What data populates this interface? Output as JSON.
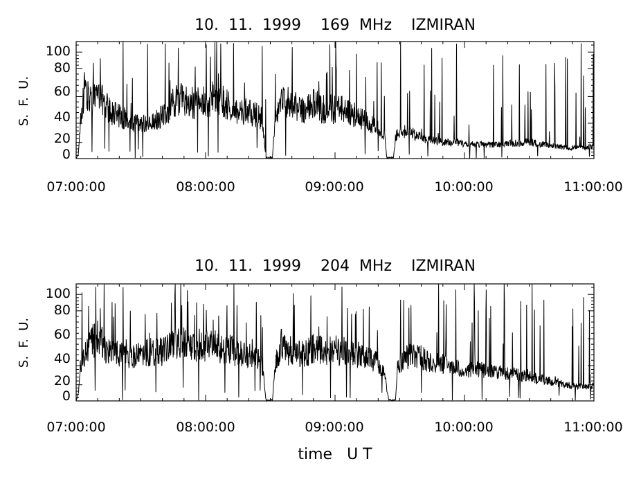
{
  "xlabel": "time   U T",
  "chart_data": [
    {
      "type": "line",
      "title": "10.  11.  1999    169  MHz    IZMIRAN",
      "ylabel": "S.  F.  U.",
      "xlabel": "",
      "x_ticks": [
        "07:00:00",
        "08:00:00",
        "09:00:00",
        "10:00:00",
        "11:00:00"
      ],
      "y_ticks": [
        0,
        20,
        40,
        60,
        80,
        100
      ],
      "xlim": [
        "07:00:00",
        "11:00:00"
      ],
      "ylim": [
        0,
        106
      ],
      "grid": false,
      "series": [
        {
          "color": "#000000",
          "points": [
            [
              "07:00:00",
              0
            ],
            [
              "07:01:00",
              5
            ],
            [
              "07:02:00",
              40
            ],
            [
              "07:04:00",
              70
            ],
            [
              "07:06:00",
              55
            ],
            [
              "07:10:00",
              65
            ],
            [
              "07:15:00",
              50
            ],
            [
              "07:20:00",
              45
            ],
            [
              "07:25:00",
              40
            ],
            [
              "07:30:00",
              38
            ],
            [
              "07:35:00",
              40
            ],
            [
              "07:40:00",
              45
            ],
            [
              "07:45:00",
              55
            ],
            [
              "07:50:00",
              58
            ],
            [
              "07:55:00",
              55
            ],
            [
              "08:00:00",
              55
            ],
            [
              "08:05:00",
              57
            ],
            [
              "08:10:00",
              55
            ],
            [
              "08:15:00",
              50
            ],
            [
              "08:20:00",
              48
            ],
            [
              "08:25:00",
              45
            ],
            [
              "08:27:00",
              30
            ],
            [
              "08:28:00",
              0
            ],
            [
              "08:31:00",
              0
            ],
            [
              "08:32:00",
              40
            ],
            [
              "08:35:00",
              55
            ],
            [
              "08:40:00",
              55
            ],
            [
              "08:45:00",
              50
            ],
            [
              "08:50:00",
              55
            ],
            [
              "08:55:00",
              50
            ],
            [
              "09:00:00",
              50
            ],
            [
              "09:05:00",
              50
            ],
            [
              "09:10:00",
              45
            ],
            [
              "09:15:00",
              40
            ],
            [
              "09:20:00",
              35
            ],
            [
              "09:23:00",
              28
            ],
            [
              "09:24:00",
              0
            ],
            [
              "09:27:00",
              0
            ],
            [
              "09:28:00",
              25
            ],
            [
              "09:30:00",
              32
            ],
            [
              "09:35:00",
              30
            ],
            [
              "09:40:00",
              25
            ],
            [
              "09:45:00",
              22
            ],
            [
              "09:50:00",
              20
            ],
            [
              "09:55:00",
              20
            ],
            [
              "10:00:00",
              18
            ],
            [
              "10:10:00",
              17
            ],
            [
              "10:20:00",
              18
            ],
            [
              "10:30:00",
              20
            ],
            [
              "10:40:00",
              16
            ],
            [
              "10:50:00",
              13
            ],
            [
              "10:55:00",
              14
            ],
            [
              "11:00:00",
              15
            ]
          ]
        }
      ]
    },
    {
      "type": "line",
      "title": "10.  11.  1999    204  MHz    IZMIRAN",
      "ylabel": "S.  F.  U.",
      "xlabel": "time   U T",
      "x_ticks": [
        "07:00:00",
        "08:00:00",
        "09:00:00",
        "10:00:00",
        "11:00:00"
      ],
      "y_ticks": [
        0,
        20,
        40,
        60,
        80,
        100
      ],
      "xlim": [
        "07:00:00",
        "11:00:00"
      ],
      "ylim": [
        0,
        106
      ],
      "grid": false,
      "series": [
        {
          "color": "#000000",
          "points": [
            [
              "07:00:00",
              0
            ],
            [
              "07:01:00",
              10
            ],
            [
              "07:02:00",
              40
            ],
            [
              "07:05:00",
              55
            ],
            [
              "07:10:00",
              60
            ],
            [
              "07:15:00",
              50
            ],
            [
              "07:20:00",
              48
            ],
            [
              "07:25:00",
              45
            ],
            [
              "07:30:00",
              48
            ],
            [
              "07:35:00",
              50
            ],
            [
              "07:40:00",
              50
            ],
            [
              "07:45:00",
              55
            ],
            [
              "07:50:00",
              58
            ],
            [
              "07:55:00",
              55
            ],
            [
              "08:00:00",
              55
            ],
            [
              "08:05:00",
              55
            ],
            [
              "08:10:00",
              52
            ],
            [
              "08:15:00",
              50
            ],
            [
              "08:20:00",
              48
            ],
            [
              "08:25:00",
              45
            ],
            [
              "08:27:00",
              30
            ],
            [
              "08:28:00",
              0
            ],
            [
              "08:31:00",
              0
            ],
            [
              "08:32:00",
              40
            ],
            [
              "08:35:00",
              55
            ],
            [
              "08:40:00",
              50
            ],
            [
              "08:45:00",
              48
            ],
            [
              "08:50:00",
              52
            ],
            [
              "08:55:00",
              50
            ],
            [
              "09:00:00",
              52
            ],
            [
              "09:05:00",
              50
            ],
            [
              "09:10:00",
              48
            ],
            [
              "09:15:00",
              45
            ],
            [
              "09:20:00",
              42
            ],
            [
              "09:23:00",
              30
            ],
            [
              "09:25:00",
              0
            ],
            [
              "09:28:00",
              0
            ],
            [
              "09:29:00",
              40
            ],
            [
              "09:35:00",
              48
            ],
            [
              "09:40:00",
              45
            ],
            [
              "09:45:00",
              42
            ],
            [
              "09:50:00",
              40
            ],
            [
              "09:55:00",
              38
            ],
            [
              "10:00:00",
              35
            ],
            [
              "10:10:00",
              35
            ],
            [
              "10:20:00",
              32
            ],
            [
              "10:30:00",
              28
            ],
            [
              "10:40:00",
              24
            ],
            [
              "10:50:00",
              18
            ],
            [
              "11:00:00",
              18
            ]
          ]
        }
      ]
    }
  ]
}
